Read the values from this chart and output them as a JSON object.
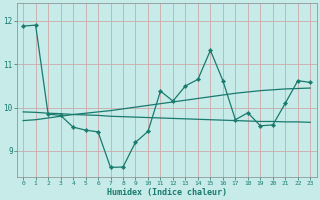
{
  "xlabel": "Humidex (Indice chaleur)",
  "bg_color": "#c6ebe8",
  "line_color": "#1a7a6e",
  "grid_color": "#ccaaaa",
  "x_values": [
    0,
    1,
    2,
    3,
    4,
    5,
    6,
    7,
    8,
    9,
    10,
    11,
    12,
    13,
    14,
    15,
    16,
    17,
    18,
    19,
    20,
    21,
    22,
    23
  ],
  "series1": [
    11.88,
    11.9,
    9.85,
    9.82,
    9.55,
    9.48,
    9.44,
    8.62,
    8.63,
    9.2,
    9.45,
    10.38,
    10.15,
    10.5,
    10.65,
    11.32,
    10.62,
    9.72,
    9.88,
    9.58,
    9.6,
    10.1,
    10.62,
    10.58
  ],
  "series2": [
    9.7,
    9.72,
    9.76,
    9.8,
    9.84,
    9.87,
    9.9,
    9.93,
    9.97,
    10.01,
    10.05,
    10.09,
    10.13,
    10.17,
    10.21,
    10.25,
    10.29,
    10.33,
    10.36,
    10.39,
    10.41,
    10.43,
    10.44,
    10.45
  ],
  "series3": [
    9.9,
    9.89,
    9.87,
    9.86,
    9.84,
    9.83,
    9.82,
    9.8,
    9.79,
    9.78,
    9.77,
    9.76,
    9.75,
    9.74,
    9.73,
    9.72,
    9.71,
    9.7,
    9.69,
    9.68,
    9.68,
    9.67,
    9.67,
    9.66
  ],
  "ylim": [
    8.4,
    12.4
  ],
  "yticks": [
    9,
    10,
    11,
    12
  ],
  "xlim": [
    -0.5,
    23.5
  ]
}
